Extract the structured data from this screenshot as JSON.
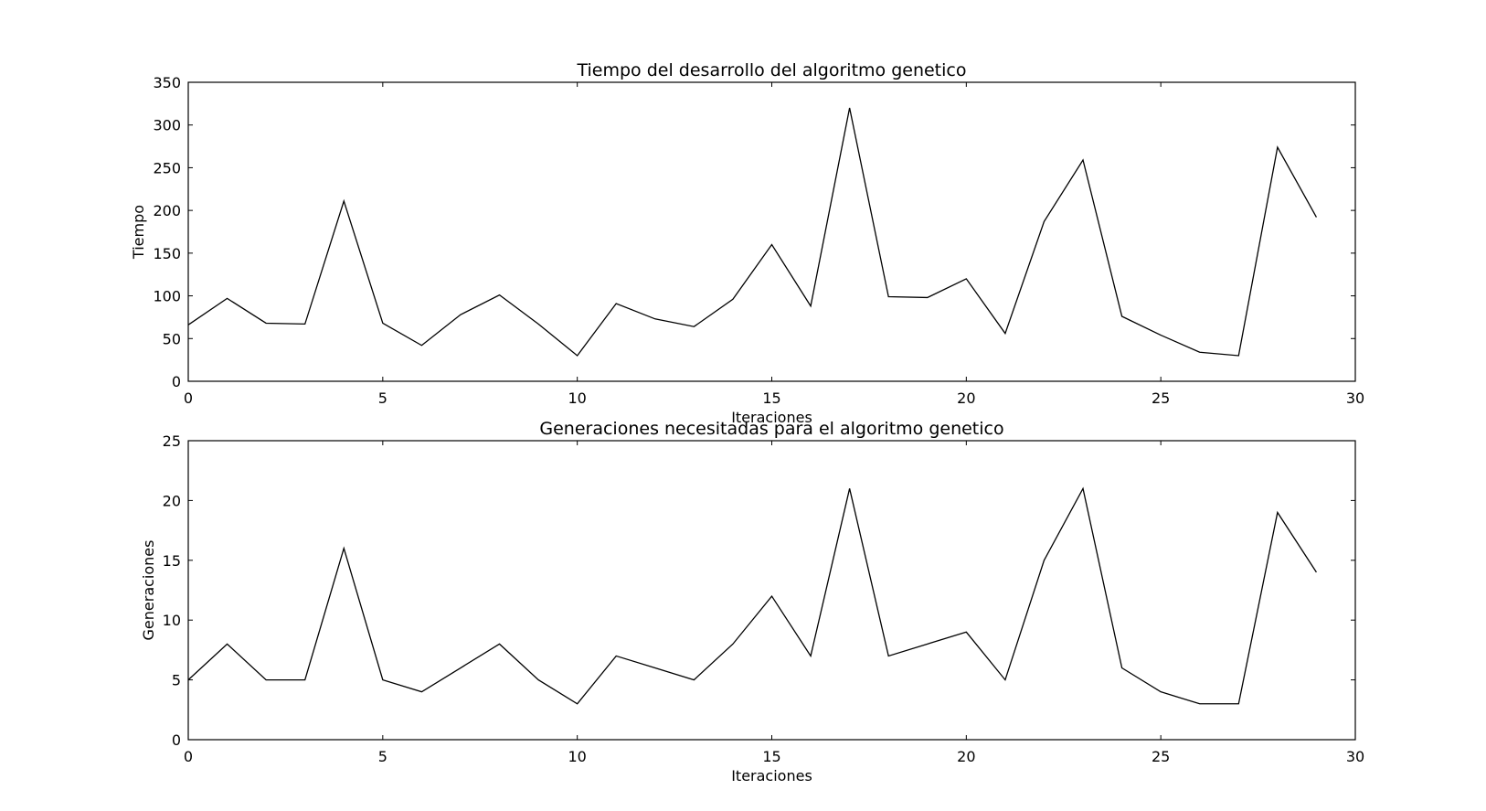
{
  "chart_data": [
    {
      "type": "line",
      "title": "Tiempo del desarrollo del algoritmo genetico",
      "xlabel": "Iteraciones",
      "ylabel": "Tiempo",
      "xlim": [
        0,
        30
      ],
      "ylim": [
        0,
        350
      ],
      "xticks": [
        0,
        5,
        10,
        15,
        20,
        25,
        30
      ],
      "yticks": [
        0,
        50,
        100,
        150,
        200,
        250,
        300,
        350
      ],
      "grid": false,
      "line_color": "#000000",
      "series": [
        {
          "name": "Tiempo",
          "x": [
            0,
            1,
            2,
            3,
            4,
            5,
            6,
            7,
            8,
            9,
            10,
            11,
            12,
            13,
            14,
            15,
            16,
            17,
            18,
            19,
            20,
            21,
            22,
            23,
            24,
            25,
            26,
            27,
            28,
            29
          ],
          "values": [
            66,
            97,
            68,
            67,
            211,
            68,
            42,
            78,
            101,
            67,
            30,
            91,
            73,
            64,
            96,
            160,
            88,
            320,
            99,
            98,
            120,
            56,
            187,
            259,
            76,
            54,
            34,
            30,
            274,
            192
          ]
        }
      ]
    },
    {
      "type": "line",
      "title": "Generaciones necesitadas para el algoritmo genetico",
      "xlabel": "Iteraciones",
      "ylabel": "Generaciones",
      "xlim": [
        0,
        30
      ],
      "ylim": [
        0,
        25
      ],
      "xticks": [
        0,
        5,
        10,
        15,
        20,
        25,
        30
      ],
      "yticks": [
        0,
        5,
        10,
        15,
        20,
        25
      ],
      "grid": false,
      "line_color": "#000000",
      "series": [
        {
          "name": "Generaciones",
          "x": [
            0,
            1,
            2,
            3,
            4,
            5,
            6,
            7,
            8,
            9,
            10,
            11,
            12,
            13,
            14,
            15,
            16,
            17,
            18,
            19,
            20,
            21,
            22,
            23,
            24,
            25,
            26,
            27,
            28,
            29
          ],
          "values": [
            5,
            8,
            5,
            5,
            16,
            5,
            4,
            6,
            8,
            5,
            3,
            7,
            6,
            5,
            8,
            12,
            7,
            21,
            7,
            8,
            9,
            5,
            15,
            21,
            6,
            4,
            3,
            3,
            19,
            14
          ]
        }
      ]
    }
  ]
}
